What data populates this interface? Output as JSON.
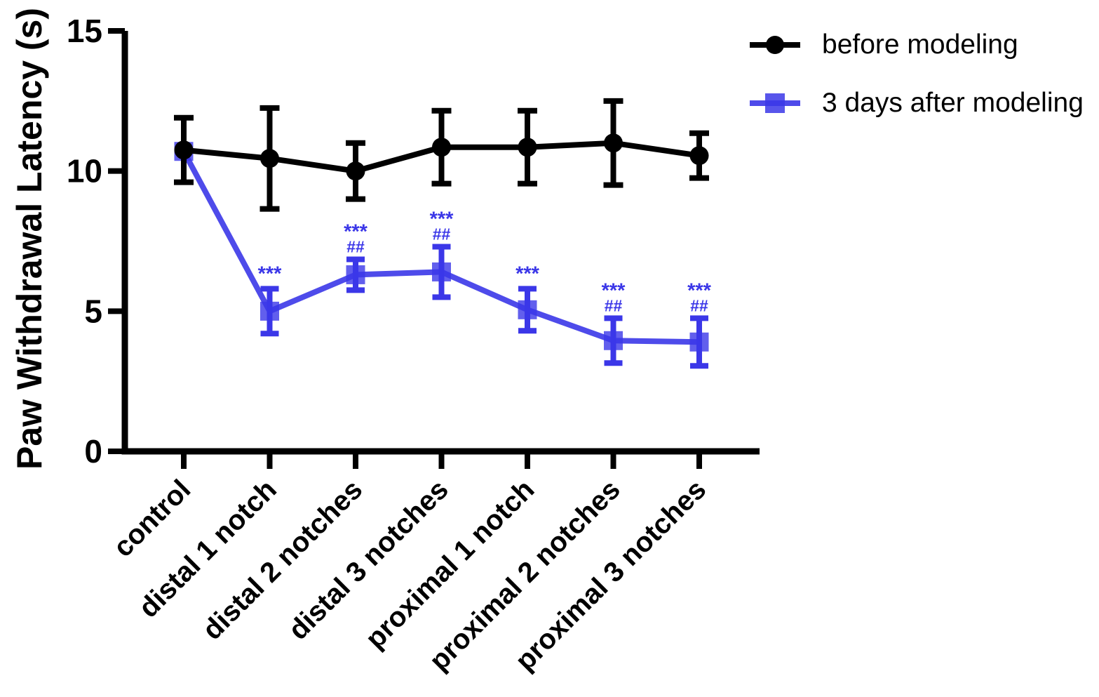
{
  "figure": {
    "background": "#ffffff",
    "accent_blue": "#3b37e8",
    "accent_black": "#000000"
  },
  "chart_data": {
    "type": "line",
    "title": "",
    "xlabel": "",
    "ylabel": "Paw Withdrawal Latency (s)",
    "ylim": [
      0,
      15
    ],
    "yticks": [
      0,
      5,
      10,
      15
    ],
    "grid": false,
    "legend_position": "top-right",
    "categories": [
      "control",
      "distal 1 notch",
      "distal 2 notches",
      "distal 3 notches",
      "proximal 1 notch",
      "proximal 2 notches",
      "proximal 3 notches"
    ],
    "series": [
      {
        "name": "before modeling",
        "marker": "circle",
        "color": "#000000",
        "values": [
          10.75,
          10.45,
          10.0,
          10.85,
          10.85,
          11.0,
          10.55
        ],
        "errors": [
          1.15,
          1.8,
          1.0,
          1.3,
          1.3,
          1.5,
          0.8
        ],
        "annotations": [
          null,
          null,
          null,
          null,
          null,
          null,
          null
        ]
      },
      {
        "name": "3 days after modeling",
        "marker": "square",
        "color": "#3b37e8",
        "values": [
          10.7,
          5.0,
          6.3,
          6.4,
          5.05,
          3.95,
          3.9
        ],
        "errors": [
          0,
          0.8,
          0.55,
          0.9,
          0.75,
          0.8,
          0.85
        ],
        "annotations": [
          null,
          {
            "stars": "***"
          },
          {
            "stars": "***",
            "hash": "##"
          },
          {
            "stars": "***",
            "hash": "##"
          },
          {
            "stars": "***"
          },
          {
            "stars": "***",
            "hash": "##"
          },
          {
            "stars": "***",
            "hash": "##"
          }
        ]
      }
    ]
  },
  "legend": {
    "items": [
      {
        "label": "before modeling",
        "marker": "circle",
        "color": "#000000"
      },
      {
        "label": "3 days after modeling",
        "marker": "square",
        "color": "#3b37e8"
      }
    ]
  }
}
